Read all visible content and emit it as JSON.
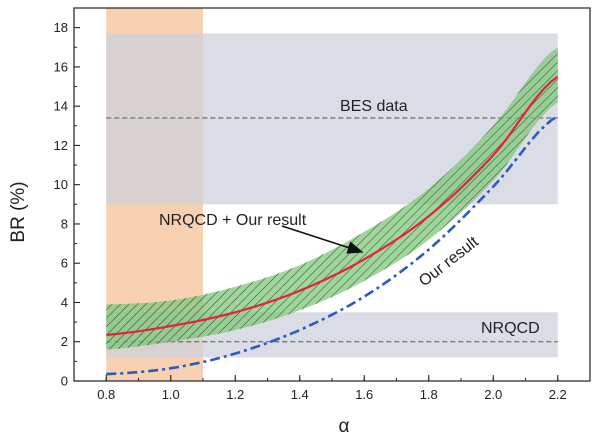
{
  "chart_data": {
    "type": "line",
    "xlabel": "α",
    "ylabel": "BR (%)",
    "xlim": [
      0.7,
      2.3
    ],
    "ylim": [
      0,
      19
    ],
    "xticks": [
      0.8,
      1.0,
      1.2,
      1.4,
      1.6,
      1.8,
      2.0,
      2.2
    ],
    "yticks": [
      0,
      2,
      4,
      6,
      8,
      10,
      12,
      14,
      16,
      18
    ],
    "grid": false,
    "colors": {
      "orange_band": "#f6c9a4",
      "gray_band": "#cdd2dc",
      "green_band": "#7fc87a",
      "red_line": "#e8203a",
      "blue_line": "#2c5bbf",
      "dashed_line": "#777777"
    },
    "regions": [
      {
        "name": "orange-region",
        "x": [
          0.8,
          1.1
        ],
        "y": [
          0,
          19
        ]
      },
      {
        "name": "bes-band",
        "x": [
          0.8,
          2.2
        ],
        "y": [
          9.0,
          17.7
        ]
      },
      {
        "name": "nrqcd-band",
        "x": [
          0.8,
          2.2
        ],
        "y": [
          1.2,
          3.5
        ]
      }
    ],
    "reference_lines": [
      {
        "name": "bes-data-line",
        "y": 13.4,
        "x": [
          0.8,
          2.2
        ]
      },
      {
        "name": "nrqcd-line",
        "y": 2.0,
        "x": [
          0.8,
          2.2
        ]
      }
    ],
    "x": [
      0.8,
      1.0,
      1.2,
      1.4,
      1.6,
      1.8,
      2.0,
      2.2
    ],
    "series": [
      {
        "values": [
          2.35,
          2.8,
          3.5,
          4.6,
          6.2,
          8.4,
          11.5,
          15.5
        ]
      },
      {
        "values": [
          0.35,
          0.65,
          1.4,
          2.6,
          4.3,
          6.7,
          9.9,
          13.5
        ]
      }
    ],
    "band": {
      "lower": [
        1.6,
        2.0,
        2.6,
        3.6,
        5.1,
        7.2,
        10.2,
        14.2
      ],
      "upper": [
        3.9,
        4.1,
        4.8,
        5.9,
        7.6,
        9.8,
        13.0,
        17.0
      ]
    },
    "annotations": {
      "bes": "BES data",
      "nrqcd": "NRQCD",
      "combined": "NRQCD + Our result",
      "ours": "Our result"
    }
  }
}
